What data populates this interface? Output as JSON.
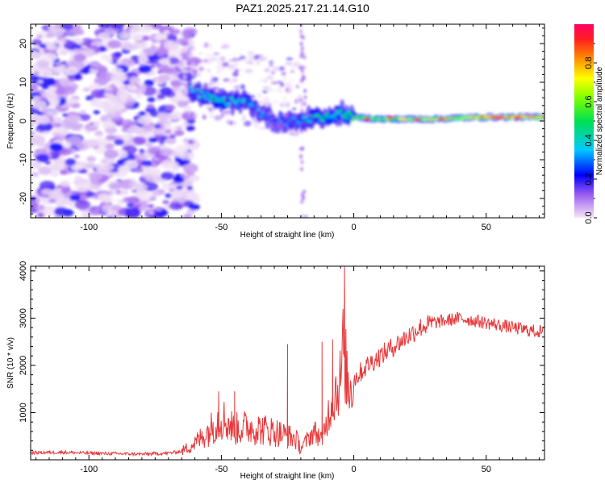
{
  "figure_title": "PAZ1.2025.217.21.14.G10",
  "chart_data": [
    {
      "type": "heatmap",
      "xlabel": "Height of straight line (km)",
      "ylabel": "Frequency (Hz)",
      "xlim": [
        -122,
        72
      ],
      "ylim": [
        -25,
        25
      ],
      "x_ticks": [
        "-100",
        "-50",
        "0",
        "50"
      ],
      "x_tick_values": [
        -100,
        -50,
        0,
        50
      ],
      "y_ticks": [
        "-20",
        "-10",
        "0",
        "10",
        "20"
      ],
      "y_tick_values": [
        -20,
        -10,
        0,
        10,
        20
      ],
      "colorbar": {
        "label": "Normalized spectral amplitude",
        "range": [
          0,
          1
        ],
        "ticks": [
          "0.0",
          "0.2",
          "0.4",
          "0.6",
          "0.8"
        ],
        "tick_values": [
          0.0,
          0.2,
          0.4,
          0.6,
          0.8
        ]
      },
      "ridge": {
        "x": [
          -62,
          -55,
          -50,
          -45,
          -40,
          -35,
          -30,
          -25,
          -20,
          -15,
          -10,
          -5,
          0,
          10,
          20,
          30,
          40,
          50,
          60,
          70
        ],
        "frequency": [
          8,
          6,
          5,
          5,
          5,
          2,
          0,
          0,
          0,
          1,
          1,
          2,
          1,
          0.5,
          0.5,
          0.5,
          0.8,
          1,
          1,
          1
        ],
        "amplitude": [
          0.35,
          0.4,
          0.45,
          0.4,
          0.35,
          0.3,
          0.25,
          0.3,
          0.35,
          0.4,
          0.45,
          0.45,
          0.55,
          0.6,
          0.65,
          0.7,
          0.75,
          0.8,
          0.82,
          0.85
        ]
      },
      "noise_region_x": [
        -122,
        -63
      ]
    },
    {
      "type": "line",
      "xlabel": "Height of straight line (km)",
      "ylabel": "SNR (10 * v/v)",
      "xlim": [
        -122,
        72
      ],
      "ylim": [
        0,
        4100
      ],
      "x_ticks": [
        "-100",
        "-50",
        "0",
        "50"
      ],
      "x_tick_values": [
        -100,
        -50,
        0,
        50
      ],
      "y_ticks": [
        "1000",
        "2000",
        "3000",
        "4000"
      ],
      "y_tick_values": [
        1000,
        2000,
        3000,
        4000
      ],
      "series": [
        {
          "color": "#e8383a",
          "x": [
            -122,
            -110,
            -100,
            -90,
            -80,
            -70,
            -65,
            -60,
            -55,
            -50,
            -48,
            -45,
            -40,
            -35,
            -30,
            -25,
            -22,
            -20,
            -15,
            -12,
            -8,
            -5,
            -4,
            -2,
            0,
            5,
            10,
            15,
            20,
            25,
            30,
            35,
            40,
            45,
            50,
            55,
            60,
            65,
            72
          ],
          "y": [
            150,
            160,
            140,
            130,
            120,
            140,
            180,
            350,
            600,
            900,
            800,
            650,
            700,
            650,
            600,
            500,
            450,
            250,
            600,
            450,
            1300,
            1700,
            2400,
            1500,
            1700,
            2000,
            2200,
            2400,
            2600,
            2800,
            2900,
            2950,
            3000,
            2950,
            2900,
            2850,
            2800,
            2750,
            2700
          ],
          "spikes": [
            {
              "x": -51,
              "y": 1450
            },
            {
              "x": -45,
              "y": 1450
            },
            {
              "x": -25,
              "y": 2450
            },
            {
              "x": -12,
              "y": 2500
            },
            {
              "x": -3.5,
              "y": 4100
            },
            {
              "x": -8,
              "y": 2550
            }
          ]
        }
      ]
    }
  ]
}
